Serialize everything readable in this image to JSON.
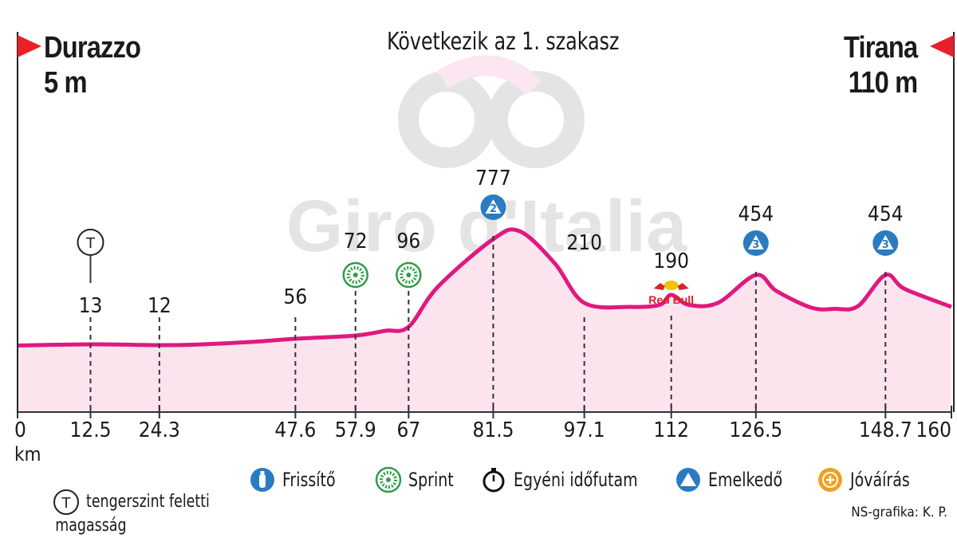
{
  "header": {
    "start": {
      "name": "Durazzo",
      "elevation": "5 m"
    },
    "finish": {
      "name": "Tirana",
      "elevation": "110 m"
    },
    "title": "Következik az 1. szakasz"
  },
  "watermark": "Giro d'Italia",
  "sponsor_mark": "Red Bull",
  "colors": {
    "profile_line": "#e0197e",
    "profile_fill": "#fce4ef",
    "flag": "#e8202a",
    "climb_blue": "#2a7bc0",
    "sprint_green": "#2e9d45",
    "bonus_orange": "#f0a020"
  },
  "chart_data": {
    "type": "area",
    "x_unit": "km",
    "xlim": [
      0,
      160
    ],
    "profile": [
      [
        0,
        13
      ],
      [
        12.5,
        16
      ],
      [
        24.3,
        14
      ],
      [
        30,
        15
      ],
      [
        40,
        22
      ],
      [
        47.6,
        30
      ],
      [
        57.9,
        38
      ],
      [
        63,
        50
      ],
      [
        67,
        60
      ],
      [
        72,
        160
      ],
      [
        81.5,
        280
      ],
      [
        86,
        300
      ],
      [
        92,
        220
      ],
      [
        97.1,
        120
      ],
      [
        105,
        110
      ],
      [
        110,
        115
      ],
      [
        112,
        140
      ],
      [
        115,
        115
      ],
      [
        120,
        120
      ],
      [
        126.5,
        190
      ],
      [
        130,
        150
      ],
      [
        136,
        108
      ],
      [
        140,
        105
      ],
      [
        144,
        112
      ],
      [
        148.7,
        190
      ],
      [
        152,
        155
      ],
      [
        160,
        110
      ]
    ],
    "ticks": [
      "0",
      "12.5",
      "24.3",
      "47.6",
      "57.9",
      "67",
      "81.5",
      "97.1",
      "112",
      "126.5",
      "148.7",
      "160"
    ],
    "tick_km": [
      0,
      12.5,
      24.3,
      47.6,
      57.9,
      67,
      81.5,
      97.1,
      112,
      126.5,
      148.7,
      160
    ],
    "markers": [
      {
        "km": 12.5,
        "elevation": "13",
        "icon": "T"
      },
      {
        "km": 24.3,
        "elevation": "12"
      },
      {
        "km": 47.6,
        "elevation": "56"
      },
      {
        "km": 57.9,
        "elevation": "72",
        "icon": "sprint"
      },
      {
        "km": 67,
        "elevation": "96",
        "icon": "sprint"
      },
      {
        "km": 81.5,
        "elevation": "777",
        "icon": "climb",
        "category": "2"
      },
      {
        "km": 97.1,
        "elevation": "210"
      },
      {
        "km": 112,
        "elevation": "190",
        "icon": "redbull"
      },
      {
        "km": 126.5,
        "elevation": "454",
        "icon": "climb",
        "category": "3"
      },
      {
        "km": 148.7,
        "elevation": "454",
        "icon": "climb",
        "category": "3"
      }
    ]
  },
  "legend": [
    {
      "icon": "T",
      "label": "tengerszint feletti",
      "label2": "magasság"
    },
    {
      "icon": "water",
      "label": "Frissítő"
    },
    {
      "icon": "sprint",
      "label": "Sprint"
    },
    {
      "icon": "stopwatch",
      "label": "Egyéni időfutam"
    },
    {
      "icon": "climb",
      "label": "Emelkedő"
    },
    {
      "icon": "bonus",
      "label": "Jóváírás"
    }
  ],
  "credit": "NS-grafika: K. P."
}
